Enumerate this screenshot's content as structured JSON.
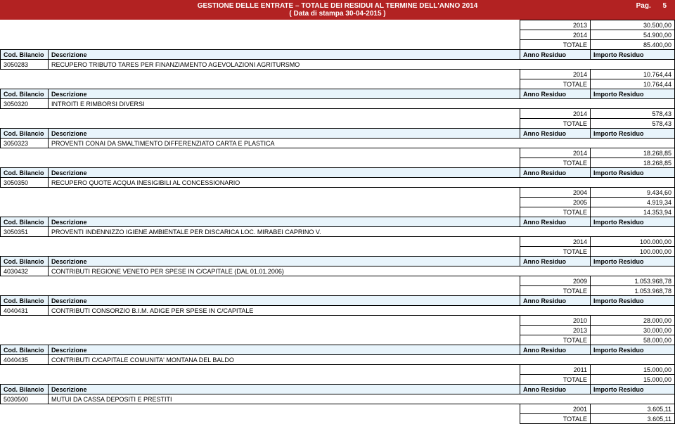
{
  "header": {
    "title_line1": "GESTIONE DELLE ENTRATE – TOTALE DEI RESIDUI AL TERMINE DELL'ANNO 2014",
    "title_line2": "( Data di stampa  30-04-2015 )",
    "page_label": "Pag.",
    "page_number": "5"
  },
  "column_headers": {
    "code": "Cod. Bilancio",
    "desc": "Descrizione",
    "year": "Anno Residuo",
    "amount": "Importo Residuo"
  },
  "total_label": "TOTALE",
  "colors": {
    "header_bg": "#b22222",
    "header_text": "#ffffff",
    "col_header_bg": "#e8f4fb",
    "border": "#000000",
    "background": "#ffffff"
  },
  "top_values": [
    {
      "year": "2013",
      "amount": "30.500,00"
    },
    {
      "year": "2014",
      "amount": "54.900,00"
    },
    {
      "year": "TOTALE",
      "amount": "85.400,00"
    }
  ],
  "sections": [
    {
      "code": "3050283",
      "desc": "RECUPERO TRIBUTO TARES PER FINANZIAMENTO AGEVOLAZIONI AGRITURSMO",
      "rows": [
        {
          "year": "2014",
          "amount": "10.764,44"
        },
        {
          "year": "TOTALE",
          "amount": "10.764,44"
        }
      ]
    },
    {
      "code": "3050320",
      "desc": "INTROITI E RIMBORSI DIVERSI",
      "rows": [
        {
          "year": "2014",
          "amount": "578,43"
        },
        {
          "year": "TOTALE",
          "amount": "578,43"
        }
      ]
    },
    {
      "code": "3050323",
      "desc": "PROVENTI CONAI DA SMALTIMENTO DIFFERENZIATO CARTA E PLASTICA",
      "rows": [
        {
          "year": "2014",
          "amount": "18.268,85"
        },
        {
          "year": "TOTALE",
          "amount": "18.268,85"
        }
      ]
    },
    {
      "code": "3050350",
      "desc": "RECUPERO QUOTE ACQUA INESIGIBILI AL CONCESSIONARIO",
      "rows": [
        {
          "year": "2004",
          "amount": "9.434,60"
        },
        {
          "year": "2005",
          "amount": "4.919,34"
        },
        {
          "year": "TOTALE",
          "amount": "14.353,94"
        }
      ]
    },
    {
      "code": "3050351",
      "desc": "PROVENTI INDENNIZZO IGIENE AMBIENTALE PER DISCARICA LOC. MIRABEI CAPRINO V.",
      "rows": [
        {
          "year": "2014",
          "amount": "100.000,00"
        },
        {
          "year": "TOTALE",
          "amount": "100.000,00"
        }
      ]
    },
    {
      "code": "4030432",
      "desc": "CONTRIBUTI REGIONE VENETO PER SPESE IN C/CAPITALE (DAL 01.01.2006)",
      "rows": [
        {
          "year": "2009",
          "amount": "1.053.968,78"
        },
        {
          "year": "TOTALE",
          "amount": "1.053.968,78"
        }
      ]
    },
    {
      "code": "4040431",
      "desc": "CONTRIBUTI CONSORZIO B.I.M. ADIGE PER SPESE IN C/CAPITALE",
      "rows": [
        {
          "year": "2010",
          "amount": "28.000,00"
        },
        {
          "year": "2013",
          "amount": "30.000,00"
        },
        {
          "year": "TOTALE",
          "amount": "58.000,00"
        }
      ]
    },
    {
      "code": "4040435",
      "desc": "CONTRIBUTI C/CAPITALE COMUNITA' MONTANA DEL BALDO",
      "rows": [
        {
          "year": "2011",
          "amount": "15.000,00"
        },
        {
          "year": "TOTALE",
          "amount": "15.000,00"
        }
      ]
    },
    {
      "code": "5030500",
      "desc": "MUTUI DA CASSA DEPOSITI E PRESTITI",
      "rows": [
        {
          "year": "2001",
          "amount": "3.605,11"
        },
        {
          "year": "TOTALE",
          "amount": "3.605,11"
        }
      ]
    }
  ]
}
